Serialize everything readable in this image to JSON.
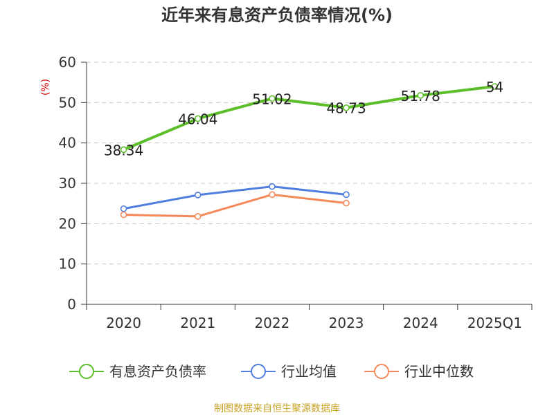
{
  "colors": {
    "main": "#5cbf2a",
    "avg": "#4f7ee0",
    "median": "#f5885a",
    "grid": "#c8c8c8",
    "axis": "#333333",
    "unit": "#e00000",
    "source": "#c9a227"
  },
  "chart_data": {
    "type": "line",
    "title": "近年来有息资产负债率情况(%)",
    "ylabel": "(%)",
    "categories": [
      "2020",
      "2021",
      "2022",
      "2023",
      "2024",
      "2025Q1"
    ],
    "y_ticks": [
      "0",
      "10",
      "20",
      "30",
      "40",
      "50",
      "60"
    ],
    "ylim": [
      0,
      60
    ],
    "grid": "horizontal-dashed",
    "legend_position": "bottom",
    "series": [
      {
        "name": "有息资产负债率",
        "values": [
          38.34,
          46.04,
          51.02,
          48.73,
          51.78,
          54
        ],
        "labels": [
          "38.34",
          "46.04",
          "51.02",
          "48.73",
          "51.78",
          "54"
        ]
      },
      {
        "name": "行业均值",
        "values": [
          23.7,
          27.1,
          29.2,
          27.2,
          null,
          null
        ]
      },
      {
        "name": "行业中位数",
        "values": [
          22.2,
          21.8,
          27.2,
          25.1,
          null,
          null
        ]
      }
    ],
    "source": "制图数据来自恒生聚源数据库"
  }
}
